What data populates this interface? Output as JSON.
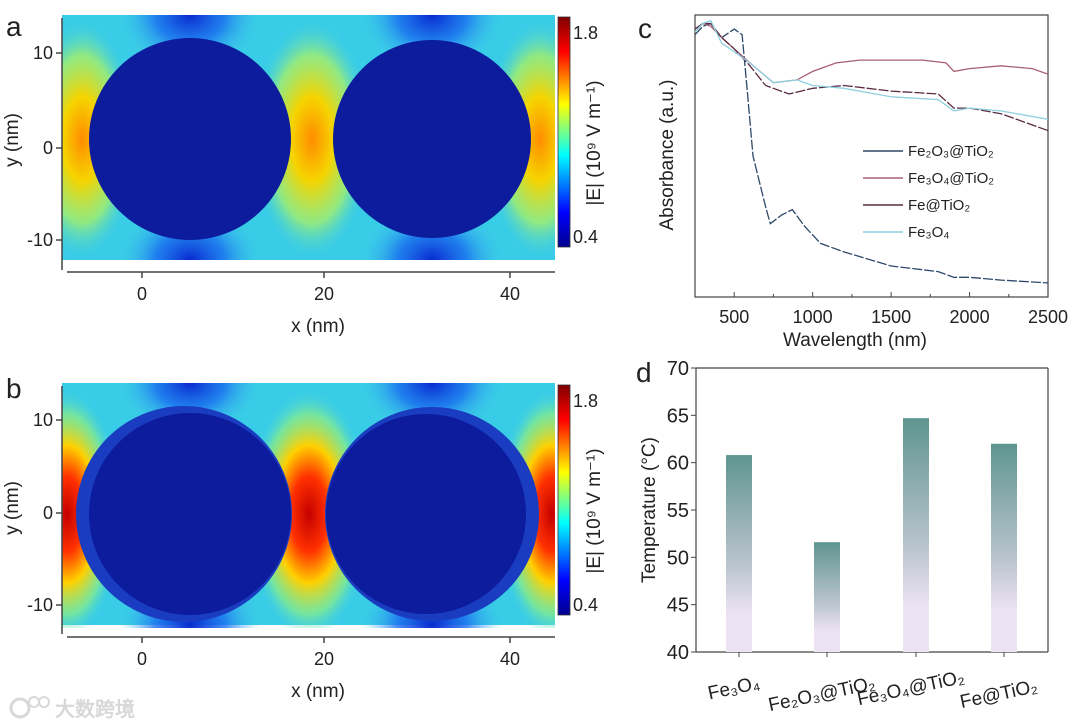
{
  "panel_labels": {
    "a": "a",
    "b": "b",
    "c": "c",
    "d": "d"
  },
  "watermark": "大数跨境",
  "colors": {
    "particle": "#0c1c9c",
    "bar_top": "#5f958f",
    "bar_bottom": "#ece2f2",
    "axis": "#444444"
  },
  "chart_data": [
    {
      "id": "a",
      "type": "heatmap",
      "title": "",
      "xlabel": "x (nm)",
      "ylabel": "y (nm)",
      "xticks": [
        "0",
        "20",
        "40"
      ],
      "yticks": [
        "10",
        "0",
        "-10"
      ],
      "colorbar": {
        "label": "|E| (10⁹ V m⁻¹)",
        "min": 0.4,
        "max": 1.8,
        "tick_labels": [
          "1.8",
          "0.4"
        ]
      }
    },
    {
      "id": "b",
      "type": "heatmap",
      "title": "",
      "xlabel": "x (nm)",
      "ylabel": "y (nm)",
      "xticks": [
        "0",
        "20",
        "40"
      ],
      "yticks": [
        "10",
        "0",
        "-10"
      ],
      "colorbar": {
        "label": "|E| (10⁹ V m⁻¹)",
        "min": 0.4,
        "max": 1.8,
        "tick_labels": [
          "1.8",
          "0.4"
        ]
      }
    },
    {
      "id": "c",
      "type": "line",
      "xlabel": "Wavelength (nm)",
      "ylabel": "Absorbance (a.u.)",
      "xlim": [
        250,
        2500
      ],
      "ylim": [
        0,
        1
      ],
      "xticks": [
        500,
        1000,
        1500,
        2000,
        2500
      ],
      "legend": "center-right",
      "series": [
        {
          "name": "Fe₂O₃@TiO₂",
          "color": "#2e4a6a",
          "x": [
            250,
            300,
            350,
            420,
            500,
            550,
            580,
            620,
            700,
            730,
            800,
            870,
            950,
            1050,
            1200,
            1500,
            1800,
            1900,
            2000,
            2200,
            2500
          ],
          "y": [
            0.93,
            0.96,
            0.97,
            0.92,
            0.95,
            0.93,
            0.75,
            0.5,
            0.32,
            0.26,
            0.29,
            0.31,
            0.25,
            0.19,
            0.16,
            0.11,
            0.09,
            0.07,
            0.07,
            0.06,
            0.05
          ]
        },
        {
          "name": "Fe₃O₄@TiO₂",
          "color": "#a86070",
          "x": [
            250,
            300,
            350,
            420,
            500,
            600,
            750,
            900,
            1000,
            1150,
            1300,
            1500,
            1700,
            1850,
            1900,
            2000,
            2200,
            2400,
            2500
          ],
          "y": [
            0.95,
            0.97,
            0.96,
            0.92,
            0.88,
            0.83,
            0.76,
            0.77,
            0.8,
            0.83,
            0.84,
            0.84,
            0.84,
            0.83,
            0.8,
            0.81,
            0.82,
            0.81,
            0.79
          ]
        },
        {
          "name": "Fe@TiO₂",
          "color": "#5a2a44",
          "x": [
            250,
            300,
            350,
            420,
            500,
            600,
            700,
            850,
            1000,
            1200,
            1500,
            1800,
            1900,
            2000,
            2200,
            2500
          ],
          "y": [
            0.95,
            0.97,
            0.97,
            0.92,
            0.88,
            0.82,
            0.75,
            0.72,
            0.74,
            0.75,
            0.73,
            0.72,
            0.67,
            0.67,
            0.65,
            0.59
          ]
        },
        {
          "name": "Fe₃O₄",
          "color": "#8ecfe0",
          "x": [
            250,
            300,
            350,
            420,
            500,
            600,
            750,
            900,
            1000,
            1200,
            1500,
            1800,
            1900,
            2000,
            2200,
            2500
          ],
          "y": [
            0.94,
            0.97,
            0.98,
            0.9,
            0.87,
            0.83,
            0.76,
            0.77,
            0.75,
            0.74,
            0.71,
            0.7,
            0.66,
            0.67,
            0.66,
            0.63
          ]
        }
      ]
    },
    {
      "id": "d",
      "type": "bar",
      "xlabel": "",
      "ylabel": "Temperature (°C)",
      "ylim": [
        40,
        70
      ],
      "yticks": [
        40,
        45,
        50,
        55,
        60,
        65,
        70
      ],
      "categories": [
        "Fe₃O₄",
        "Fe₂O₃@TiO₂",
        "Fe₃O₄@TiO₂",
        "Fe@TiO₂"
      ],
      "values": [
        60.8,
        51.6,
        64.7,
        62.0
      ]
    }
  ]
}
